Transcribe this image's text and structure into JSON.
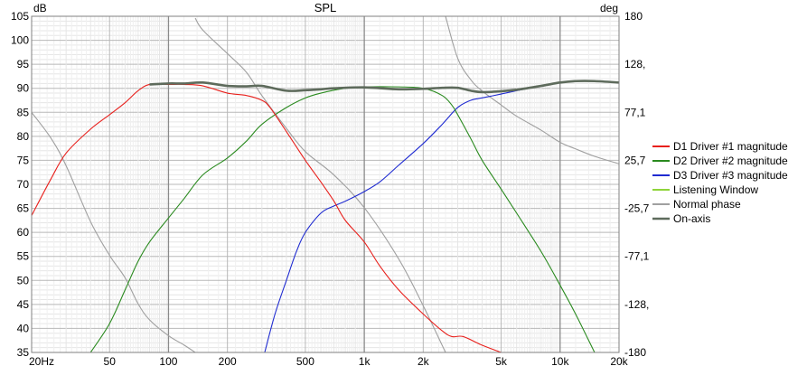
{
  "chart_data": {
    "type": "line",
    "title": "SPL",
    "ylabel": "dB",
    "y2label": "deg",
    "xscale": "log",
    "xlim": [
      20,
      20000
    ],
    "ylim": [
      35,
      105
    ],
    "y2lim": [
      -180,
      180
    ],
    "x_ticks": [
      {
        "value": 20,
        "label": "20Hz"
      },
      {
        "value": 50,
        "label": "50"
      },
      {
        "value": 100,
        "label": "100"
      },
      {
        "value": 200,
        "label": "200"
      },
      {
        "value": 500,
        "label": "500"
      },
      {
        "value": 1000,
        "label": "1k"
      },
      {
        "value": 2000,
        "label": "2k"
      },
      {
        "value": 5000,
        "label": "5k"
      },
      {
        "value": 10000,
        "label": "10k"
      },
      {
        "value": 20000,
        "label": "20k"
      }
    ],
    "y_ticks": [
      "105",
      "100",
      "95",
      "90",
      "85",
      "80",
      "75",
      "70",
      "65",
      "60",
      "55",
      "50",
      "45",
      "40",
      "35"
    ],
    "y2_ticks": [
      {
        "value": 180,
        "label": "180"
      },
      {
        "value": 128.6,
        "label": "128,"
      },
      {
        "value": 77.1,
        "label": "77,1"
      },
      {
        "value": 25.7,
        "label": "25,7"
      },
      {
        "value": -25.7,
        "label": "-25,7"
      },
      {
        "value": -77.1,
        "label": "-77,1"
      },
      {
        "value": -128.6,
        "label": "-128,"
      },
      {
        "value": -180,
        "label": "-180"
      }
    ],
    "grid": true,
    "legend_position": "right",
    "series": [
      {
        "name": "D1 Driver #1 magnitude",
        "color": "#e8201c",
        "axis": "left",
        "x": [
          20,
          25,
          30,
          40,
          50,
          60,
          70,
          80,
          100,
          120,
          150,
          200,
          250,
          300,
          330,
          400,
          500,
          600,
          700,
          800,
          1000,
          1200,
          1500,
          2000,
          2500,
          2800,
          3200,
          4000,
          5000
        ],
        "y": [
          63.5,
          71,
          76.5,
          81.5,
          84.5,
          87,
          89.5,
          90.8,
          90.8,
          90.8,
          90.5,
          89,
          88.5,
          87.5,
          86,
          81,
          75,
          70.5,
          66.5,
          62.5,
          58,
          53,
          48,
          43,
          39.5,
          38.3,
          38.3,
          36.5,
          35
        ]
      },
      {
        "name": "D2 Driver #2 magnitude",
        "color": "#2a8a1f",
        "axis": "left",
        "x": [
          40,
          50,
          60,
          70,
          80,
          100,
          120,
          150,
          200,
          250,
          300,
          400,
          500,
          600,
          800,
          1000,
          1500,
          2000,
          2500,
          2800,
          3000,
          3500,
          4000,
          5000,
          6000,
          8000,
          10000,
          12000,
          15000
        ],
        "y": [
          35,
          41,
          48,
          54,
          58,
          63,
          67,
          72,
          75.5,
          79,
          82.5,
          86,
          88,
          89,
          90,
          90.3,
          90.3,
          90,
          88.5,
          86.5,
          84.5,
          79.5,
          75,
          69,
          64,
          56,
          49,
          43,
          35
        ]
      },
      {
        "name": "D3 Driver #3 magnitude",
        "color": "#1f2bd1",
        "axis": "left",
        "x": [
          310,
          350,
          400,
          450,
          500,
          600,
          700,
          800,
          1000,
          1200,
          1500,
          2000,
          2500,
          3000,
          3500,
          4000,
          5000,
          6000,
          8000,
          10000,
          12000,
          15000,
          20000
        ],
        "y": [
          35,
          43,
          50,
          56,
          60,
          64,
          65.5,
          66.5,
          68.5,
          70.5,
          74,
          78.5,
          82.5,
          86,
          87.5,
          88,
          88.8,
          89.5,
          90.5,
          91.2,
          91.5,
          91.5,
          91.2
        ]
      },
      {
        "name": "Listening Window",
        "color": "#8fd43a",
        "axis": "left",
        "x": [],
        "y": []
      },
      {
        "name": "Normal phase",
        "color": "#a0a0a0",
        "axis": "right",
        "segments": [
          {
            "x": [
              20,
              25,
              30,
              40,
              50,
              60,
              70,
              80,
              100,
              120,
              137
            ],
            "y": [
              77,
              50,
              20,
              -40,
              -76,
              -100,
              -128,
              -145,
              -162,
              -172,
              -180
            ]
          },
          {
            "x": [
              137,
              150,
              200,
              250,
              300,
              400,
              500,
              700,
              1000,
              1500,
              2000,
              2600
            ],
            "y": [
              178,
              165,
              140,
              120,
              95,
              60,
              35,
              10,
              -25,
              -80,
              -130,
              -180
            ]
          },
          {
            "x": [
              2600,
              3000,
              3500,
              4000,
              5000,
              6000,
              8000,
              10000,
              12000,
              15000,
              20000
            ],
            "y": [
              180,
              135,
              112,
              100,
              85,
              73,
              58,
              45,
              38,
              30,
              22
            ]
          }
        ]
      },
      {
        "name": "On-axis",
        "color": "#5e6b5c",
        "axis": "left",
        "x": [
          80,
          100,
          120,
          150,
          200,
          250,
          300,
          400,
          500,
          600,
          700,
          1000,
          1500,
          2000,
          2500,
          3000,
          3500,
          4000,
          5000,
          6000,
          8000,
          10000,
          12000,
          15000,
          20000
        ],
        "y": [
          90.8,
          91,
          91,
          91.2,
          90.5,
          90.4,
          90.5,
          89.5,
          89.6,
          89.8,
          90,
          90.2,
          89.8,
          89.9,
          90.1,
          90.1,
          89.5,
          89.2,
          89.4,
          89.7,
          90.5,
          91.2,
          91.5,
          91.5,
          91.2
        ]
      }
    ]
  }
}
